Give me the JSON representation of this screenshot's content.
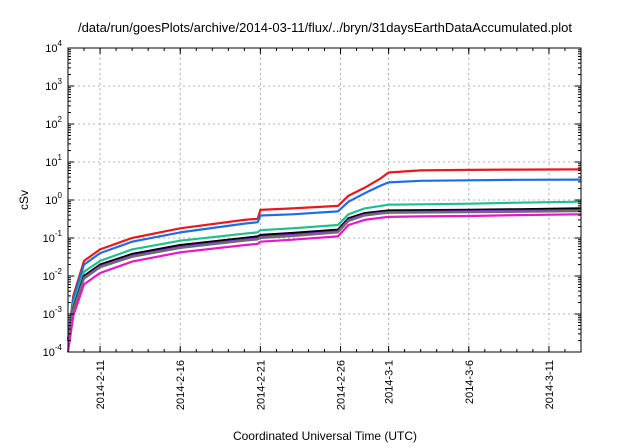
{
  "chart_data": {
    "type": "line",
    "title": "/data/run/goesPlots/archive/2014-03-11/flux/../bryn/31daysEarthDataAccumulated.plot",
    "xlabel": "Coordinated Universal Time (UTC)",
    "ylabel": "cSv",
    "y_scale": "log",
    "ylim_exp": [
      -4,
      4
    ],
    "y_ticks": [
      {
        "base": "10",
        "exp": "-4",
        "e": -4
      },
      {
        "base": "10",
        "exp": "-3",
        "e": -3
      },
      {
        "base": "10",
        "exp": "-2",
        "e": -2
      },
      {
        "base": "10",
        "exp": "-1",
        "e": -1
      },
      {
        "base": "10",
        "exp": "0",
        "e": 0
      },
      {
        "base": "10",
        "exp": "1",
        "e": 1
      },
      {
        "base": "10",
        "exp": "2",
        "e": 2
      },
      {
        "base": "10",
        "exp": "3",
        "e": 3
      },
      {
        "base": "10",
        "exp": "4",
        "e": 4
      }
    ],
    "xlim": [
      "2014-02-09",
      "2014-03-13"
    ],
    "x_ticks": [
      "2014-2-11",
      "2014-2-16",
      "2014-2-21",
      "2014-2-26",
      "2014-3-1",
      "2014-3-6",
      "2014-3-11"
    ],
    "grid": true,
    "series": [
      {
        "color": "#e8191c",
        "x": [
          "2014-02-09T00:00",
          "2014-02-09T08:00",
          "2014-02-10T00:00",
          "2014-02-11T00:00",
          "2014-02-13T00:00",
          "2014-02-16T00:00",
          "2014-02-20T00:00",
          "2014-02-20T20:00",
          "2014-02-21T00:00",
          "2014-02-23T00:00",
          "2014-02-25T20:00",
          "2014-02-26T12:00",
          "2014-02-27T12:00",
          "2014-02-28T12:00",
          "2014-03-01T00:00",
          "2014-03-03T00:00",
          "2014-03-06T00:00",
          "2014-03-09T00:00",
          "2014-03-13T00:00"
        ],
        "y": [
          0.0002,
          0.003,
          0.025,
          0.05,
          0.1,
          0.18,
          0.3,
          0.32,
          0.55,
          0.6,
          0.7,
          1.3,
          2.1,
          3.7,
          5.3,
          6.0,
          6.2,
          6.3,
          6.4
        ]
      },
      {
        "color": "#1c6ee8",
        "x": [
          "2014-02-09T00:00",
          "2014-02-09T08:00",
          "2014-02-10T00:00",
          "2014-02-11T00:00",
          "2014-02-13T00:00",
          "2014-02-16T00:00",
          "2014-02-20T00:00",
          "2014-02-20T20:00",
          "2014-02-21T00:00",
          "2014-02-23T00:00",
          "2014-02-25T20:00",
          "2014-02-26T12:00",
          "2014-02-27T12:00",
          "2014-02-28T12:00",
          "2014-03-01T00:00",
          "2014-03-03T00:00",
          "2014-03-06T00:00",
          "2014-03-09T00:00",
          "2014-03-13T00:00"
        ],
        "y": [
          0.0002,
          0.0025,
          0.02,
          0.04,
          0.08,
          0.14,
          0.24,
          0.26,
          0.39,
          0.42,
          0.5,
          0.9,
          1.5,
          2.4,
          2.9,
          3.2,
          3.3,
          3.4,
          3.45
        ]
      },
      {
        "color": "#1ebf8c",
        "x": [
          "2014-02-09T00:00",
          "2014-02-09T08:00",
          "2014-02-10T00:00",
          "2014-02-11T00:00",
          "2014-02-13T00:00",
          "2014-02-16T00:00",
          "2014-02-20T00:00",
          "2014-02-20T20:00",
          "2014-02-21T00:00",
          "2014-02-23T00:00",
          "2014-02-25T20:00",
          "2014-02-26T12:00",
          "2014-02-27T12:00",
          "2014-02-28T12:00",
          "2014-03-01T00:00",
          "2014-03-03T00:00",
          "2014-03-06T00:00",
          "2014-03-09T00:00",
          "2014-03-13T00:00"
        ],
        "y": [
          0.0002,
          0.0018,
          0.013,
          0.025,
          0.05,
          0.085,
          0.13,
          0.14,
          0.16,
          0.18,
          0.22,
          0.42,
          0.6,
          0.7,
          0.75,
          0.77,
          0.8,
          0.85,
          0.9
        ]
      },
      {
        "color": "#000000",
        "x": [
          "2014-02-09T00:00",
          "2014-02-09T08:00",
          "2014-02-10T00:00",
          "2014-02-11T00:00",
          "2014-02-13T00:00",
          "2014-02-16T00:00",
          "2014-02-20T00:00",
          "2014-02-20T20:00",
          "2014-02-21T00:00",
          "2014-02-23T00:00",
          "2014-02-25T20:00",
          "2014-02-26T12:00",
          "2014-02-27T12:00",
          "2014-02-28T12:00",
          "2014-03-01T00:00",
          "2014-03-03T00:00",
          "2014-03-06T00:00",
          "2014-03-09T00:00",
          "2014-03-13T00:00"
        ],
        "y": [
          0.0002,
          0.0014,
          0.01,
          0.02,
          0.038,
          0.065,
          0.1,
          0.11,
          0.12,
          0.135,
          0.165,
          0.33,
          0.45,
          0.5,
          0.53,
          0.54,
          0.55,
          0.57,
          0.6
        ]
      },
      {
        "color": "#8b2be2",
        "x": [
          "2014-02-09T00:00",
          "2014-02-09T08:00",
          "2014-02-10T00:00",
          "2014-02-11T00:00",
          "2014-02-13T00:00",
          "2014-02-16T00:00",
          "2014-02-20T00:00",
          "2014-02-20T20:00",
          "2014-02-21T00:00",
          "2014-02-23T00:00",
          "2014-02-25T20:00",
          "2014-02-26T12:00",
          "2014-02-27T12:00",
          "2014-02-28T12:00",
          "2014-03-01T00:00",
          "2014-03-03T00:00",
          "2014-03-06T00:00",
          "2014-03-09T00:00",
          "2014-03-13T00:00"
        ],
        "y": [
          0.0002,
          0.0013,
          0.009,
          0.018,
          0.034,
          0.058,
          0.09,
          0.097,
          0.107,
          0.12,
          0.148,
          0.3,
          0.41,
          0.46,
          0.48,
          0.49,
          0.5,
          0.52,
          0.54
        ]
      },
      {
        "color": "#6e6e6e",
        "x": [
          "2014-02-09T00:00",
          "2014-02-09T08:00",
          "2014-02-10T00:00",
          "2014-02-11T00:00",
          "2014-02-13T00:00",
          "2014-02-16T00:00",
          "2014-02-20T00:00",
          "2014-02-20T20:00",
          "2014-02-21T00:00",
          "2014-02-23T00:00",
          "2014-02-25T20:00",
          "2014-02-26T12:00",
          "2014-02-27T12:00",
          "2014-02-28T12:00",
          "2014-03-01T00:00",
          "2014-03-03T00:00",
          "2014-03-06T00:00",
          "2014-03-09T00:00",
          "2014-03-13T00:00"
        ],
        "y": [
          0.0002,
          0.0013,
          0.0085,
          0.017,
          0.032,
          0.055,
          0.085,
          0.092,
          0.1,
          0.113,
          0.14,
          0.28,
          0.39,
          0.44,
          0.46,
          0.47,
          0.48,
          0.49,
          0.51
        ]
      },
      {
        "color": "#e619c8",
        "x": [
          "2014-02-09T00:00",
          "2014-02-09T08:00",
          "2014-02-10T00:00",
          "2014-02-11T00:00",
          "2014-02-13T00:00",
          "2014-02-16T00:00",
          "2014-02-20T00:00",
          "2014-02-20T20:00",
          "2014-02-21T00:00",
          "2014-02-23T00:00",
          "2014-02-25T20:00",
          "2014-02-26T12:00",
          "2014-02-27T12:00",
          "2014-02-28T12:00",
          "2014-03-01T00:00",
          "2014-03-03T00:00",
          "2014-03-06T00:00",
          "2014-03-09T00:00",
          "2014-03-13T00:00"
        ],
        "y": [
          0.0001,
          0.0009,
          0.006,
          0.012,
          0.024,
          0.042,
          0.065,
          0.07,
          0.08,
          0.09,
          0.11,
          0.22,
          0.3,
          0.34,
          0.36,
          0.37,
          0.38,
          0.4,
          0.42
        ]
      }
    ]
  }
}
